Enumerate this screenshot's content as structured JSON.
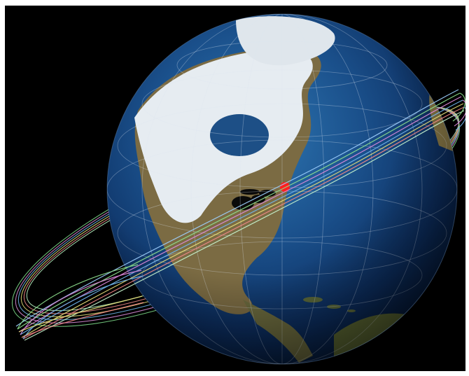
{
  "scene": {
    "subject": "earth-globe-with-orbit-tracks",
    "colors": {
      "background": "#000000",
      "ocean_deep": "#0b2c5c",
      "ocean_shallow": "#2a6fa8",
      "land": "#7a6a45",
      "snow": "#e8eef3",
      "marker": "#ff2020"
    }
  }
}
